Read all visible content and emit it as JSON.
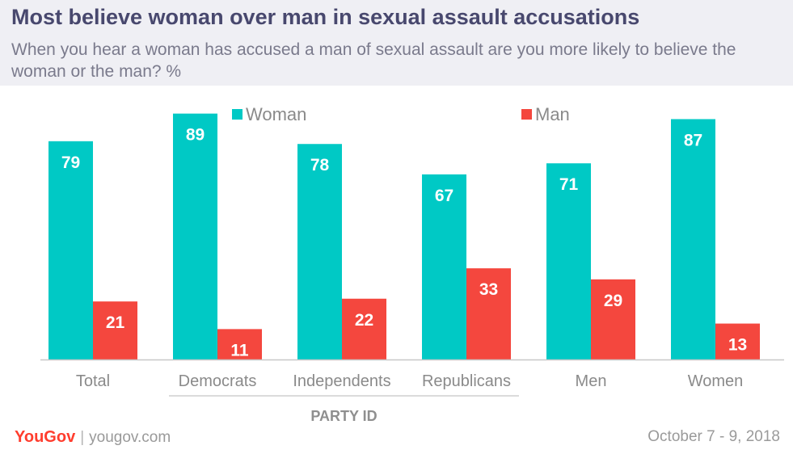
{
  "header": {
    "title": "Most believe woman over man in sexual assault accusations",
    "subtitle": "When you hear a woman has accused a man of sexual assault are you more likely to believe the woman or the man? %"
  },
  "chart_data": {
    "type": "bar",
    "categories": [
      "Total",
      "Democrats",
      "Independents",
      "Republicans",
      "Men",
      "Women"
    ],
    "series": [
      {
        "name": "Woman",
        "color": "#00c9c5",
        "values": [
          79,
          89,
          78,
          67,
          71,
          87
        ]
      },
      {
        "name": "Man",
        "color": "#f4473e",
        "values": [
          21,
          11,
          22,
          33,
          29,
          13
        ]
      }
    ],
    "ylim": [
      0,
      100
    ],
    "grid": false,
    "legend": "top-center",
    "group_label": "PARTY ID",
    "group_categories": [
      "Democrats",
      "Independents",
      "Republicans"
    ]
  },
  "footer": {
    "logo": "YouGov",
    "url": "yougov.com",
    "date": "October 7 - 9, 2018"
  }
}
